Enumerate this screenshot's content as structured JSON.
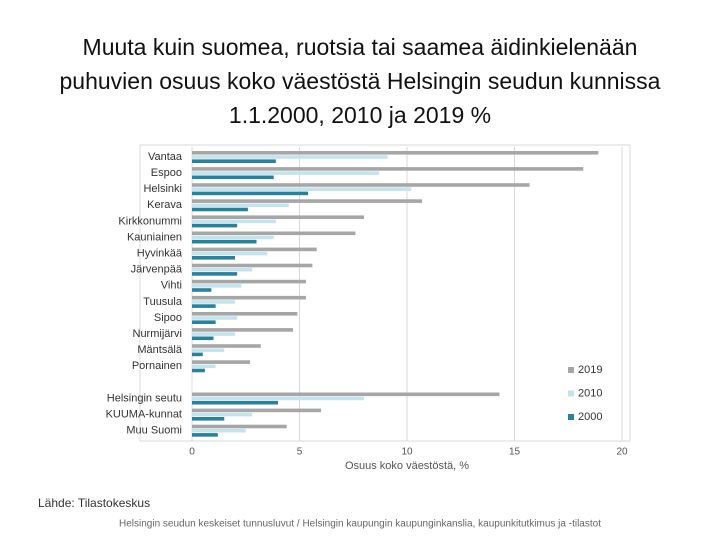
{
  "chart_data": {
    "type": "hbar",
    "title": "Muuta kuin suomea, ruotsia tai saamea äidinkielenään puhuvien osuus koko väestöstä Helsingin seudun kunnissa 1.1.2000, 2010 ja 2019 %",
    "categories": [
      "Vantaa",
      "Espoo",
      "Helsinki",
      "Kerava",
      "Kirkkonummi",
      "Kauniainen",
      "Hyvinkää",
      "Järvenpää",
      "Vihti",
      "Tuusula",
      "Sipoo",
      "Nurmijärvi",
      "Mäntsälä",
      "Pornainen",
      null,
      "Helsingin seutu",
      "KUUMA-kunnat",
      "Muu Suomi"
    ],
    "series": [
      {
        "name": "2019",
        "color": "#a6a6a6",
        "values": [
          18.9,
          18.2,
          15.7,
          10.7,
          8.0,
          7.6,
          5.8,
          5.6,
          5.3,
          5.3,
          4.9,
          4.7,
          3.2,
          2.7,
          null,
          14.3,
          6.0,
          4.4
        ]
      },
      {
        "name": "2010",
        "color": "#c5e3ec",
        "values": [
          9.1,
          8.7,
          10.2,
          4.5,
          3.9,
          3.8,
          3.5,
          2.8,
          2.3,
          2.0,
          2.1,
          2.0,
          1.5,
          1.1,
          null,
          8.0,
          2.8,
          2.5
        ]
      },
      {
        "name": "2000",
        "color": "#2e7f98",
        "values": [
          3.9,
          3.8,
          5.4,
          2.6,
          2.1,
          3.0,
          2.0,
          2.1,
          0.9,
          1.1,
          1.1,
          1.0,
          0.5,
          0.6,
          null,
          4.0,
          1.5,
          1.2
        ]
      }
    ],
    "x_label": "Osuus koko väestöstä, %",
    "xlim": [
      0,
      20
    ],
    "xticks": [
      0,
      5,
      10,
      15,
      20
    ],
    "grid": true,
    "legend": "right",
    "source": "Lähde: Tilastokeskus",
    "footer": "Helsingin seudun keskeiset tunnusluvut / Helsingin kaupungin kaupunginkanslia, kaupunkitutkimus ja -tilastot"
  }
}
